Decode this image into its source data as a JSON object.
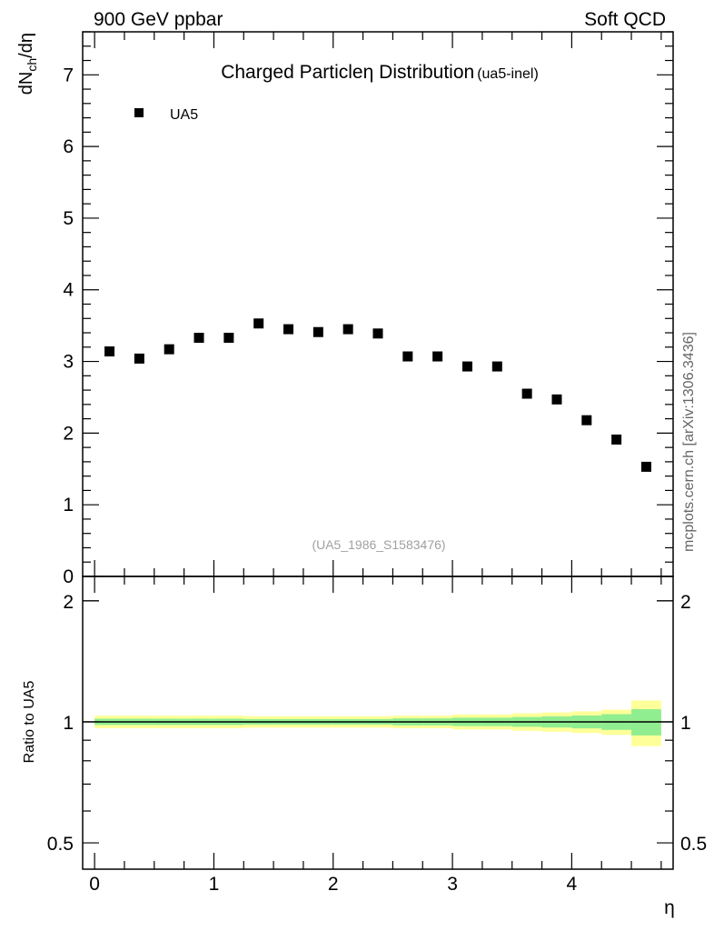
{
  "header": {
    "left": "900 GeV ppbar",
    "right": "Soft QCD"
  },
  "side_label": "mcplots.cern.ch [arXiv:1306.3436]",
  "chart_data": [
    {
      "type": "scatter",
      "title": "Charged Particle",
      "title_eta": "η",
      "title_rest": " Distribution",
      "title_tag": "(ua5-inel)",
      "ylabel_parts": {
        "main": "dN",
        "sub": "ch",
        "tail": "/dη"
      },
      "xlim": [
        -0.1,
        4.85
      ],
      "ylim": [
        0,
        7.6
      ],
      "yticks": [
        0,
        1,
        2,
        3,
        4,
        5,
        6,
        7
      ],
      "ytick_labels": [
        "0",
        "1",
        "2",
        "3",
        "4",
        "5",
        "6",
        "7"
      ],
      "legend": {
        "position": "top-left",
        "entries": [
          "UA5"
        ]
      },
      "watermark": "(UA5_1986_S1583476)",
      "series": [
        {
          "name": "UA5",
          "marker": "square",
          "x": [
            0.125,
            0.375,
            0.625,
            0.875,
            1.125,
            1.375,
            1.625,
            1.875,
            2.125,
            2.375,
            2.625,
            2.875,
            3.125,
            3.375,
            3.625,
            3.875,
            4.125,
            4.375,
            4.625
          ],
          "y": [
            3.14,
            3.04,
            3.17,
            3.33,
            3.33,
            3.53,
            3.45,
            3.41,
            3.45,
            3.39,
            3.07,
            3.07,
            2.93,
            2.93,
            2.55,
            2.47,
            2.18,
            1.91,
            1.53
          ]
        }
      ]
    },
    {
      "type": "area",
      "ylabel": "Ratio to UA5",
      "xlabel": "η",
      "xlim": [
        -0.1,
        4.85
      ],
      "ylim": [
        0.43,
        2.3
      ],
      "yscale": "log",
      "yticks": [
        0.5,
        1,
        2
      ],
      "ytick_labels": [
        "0.5",
        "1",
        "2"
      ],
      "xticks": [
        0,
        1,
        2,
        3,
        4
      ],
      "xtick_labels": [
        "0",
        "1",
        "2",
        "3",
        "4"
      ],
      "reference_line": 1,
      "bins": [
        0,
        0.25,
        0.5,
        0.75,
        1.0,
        1.25,
        1.5,
        1.75,
        2.0,
        2.25,
        2.5,
        2.75,
        3.0,
        3.25,
        3.5,
        3.75,
        4.0,
        4.25,
        4.5,
        4.75
      ],
      "band_outer": {
        "color": "#ffff99",
        "halfwidth": [
          0.036,
          0.036,
          0.036,
          0.036,
          0.036,
          0.033,
          0.033,
          0.033,
          0.033,
          0.033,
          0.036,
          0.036,
          0.043,
          0.043,
          0.05,
          0.055,
          0.062,
          0.072,
          0.13
        ]
      },
      "band_inner": {
        "color": "#90ee90",
        "halfwidth": [
          0.018,
          0.018,
          0.018,
          0.018,
          0.018,
          0.016,
          0.016,
          0.016,
          0.016,
          0.016,
          0.02,
          0.02,
          0.024,
          0.024,
          0.028,
          0.032,
          0.037,
          0.045,
          0.075
        ]
      }
    }
  ]
}
